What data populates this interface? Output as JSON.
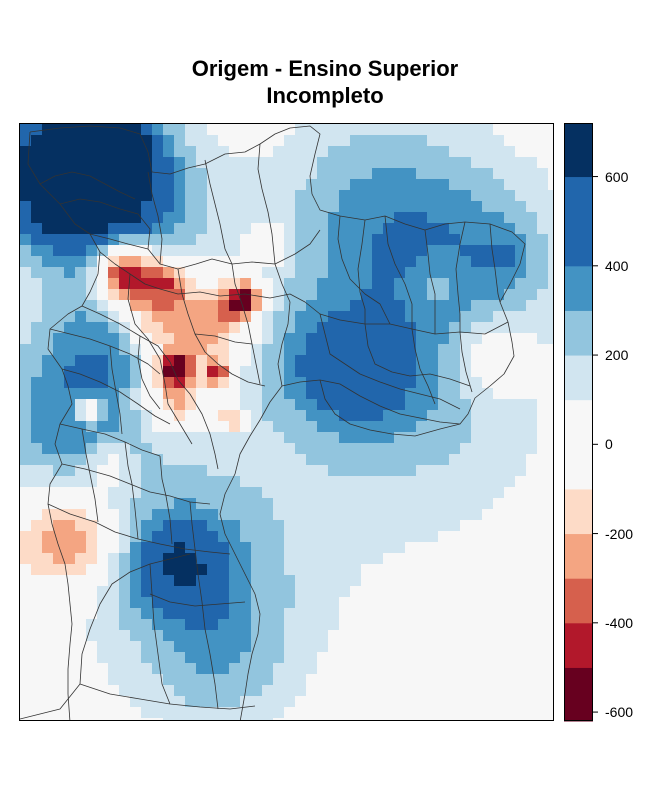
{
  "title_line1": "Origem - Ensino Superior",
  "title_line2": "Incompleto",
  "legend": {
    "ticks": [
      {
        "label": "600",
        "value": 600
      },
      {
        "label": "400",
        "value": 400
      },
      {
        "label": "200",
        "value": 200
      },
      {
        "label": "0",
        "value": 0
      },
      {
        "label": "-200",
        "value": -200
      },
      {
        "label": "-400",
        "value": -400
      },
      {
        "label": "-600",
        "value": -600
      }
    ],
    "range": [
      -620,
      720
    ],
    "bins": [
      {
        "from": -620,
        "to": -500,
        "color": "#67001f"
      },
      {
        "from": -500,
        "to": -400,
        "color": "#b2182b"
      },
      {
        "from": -400,
        "to": -300,
        "color": "#d6604d"
      },
      {
        "from": -300,
        "to": -200,
        "color": "#f4a582"
      },
      {
        "from": -200,
        "to": -100,
        "color": "#fddbc7"
      },
      {
        "from": -100,
        "to": 100,
        "color": "#f7f7f7"
      },
      {
        "from": 100,
        "to": 200,
        "color": "#d1e5f0"
      },
      {
        "from": 200,
        "to": 300,
        "color": "#92c5de"
      },
      {
        "from": 300,
        "to": 400,
        "color": "#4393c3"
      },
      {
        "from": 400,
        "to": 600,
        "color": "#2166ac"
      },
      {
        "from": 600,
        "to": 720,
        "color": "#053061"
      }
    ]
  },
  "chart_data": {
    "type": "heatmap",
    "title": "Origem - Ensino Superior Incompleto",
    "colormap": "RdBu diverging",
    "value_range": [
      -620,
      720
    ],
    "grid_on": false,
    "legend_placement": "right"
  }
}
